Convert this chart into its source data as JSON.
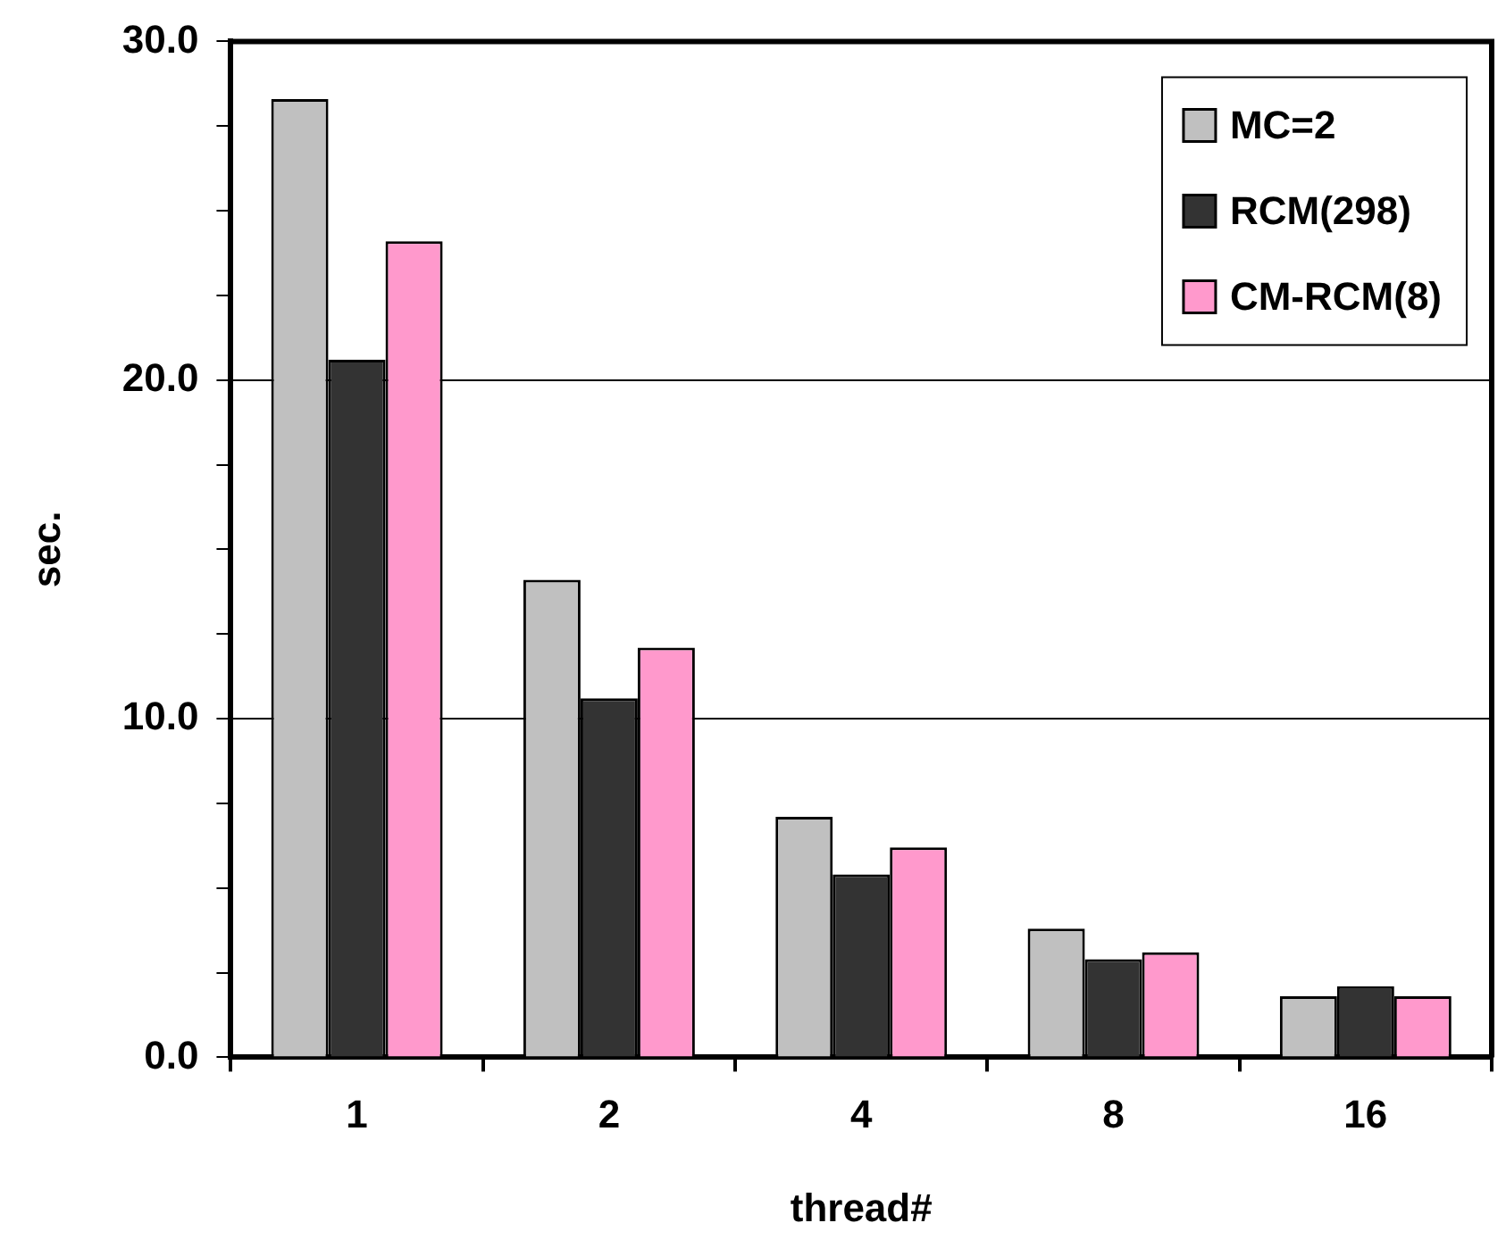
{
  "chart_data": {
    "type": "bar",
    "xlabel": "thread#",
    "ylabel": "sec.",
    "categories": [
      "1",
      "2",
      "4",
      "8",
      "16"
    ],
    "series": [
      {
        "name": "MC=2",
        "color": "#c0c0c0",
        "values": [
          28.3,
          14.1,
          7.1,
          3.8,
          1.8
        ]
      },
      {
        "name": "RCM(298)",
        "color": "#333333",
        "values": [
          20.6,
          10.6,
          5.4,
          2.9,
          2.1
        ]
      },
      {
        "name": "CM-RCM(8)",
        "color": "#ff99cc",
        "values": [
          24.1,
          12.1,
          6.2,
          3.1,
          1.8
        ]
      }
    ],
    "ylim": [
      0,
      30
    ],
    "yticks": [
      {
        "value": 0,
        "label": "0.0"
      },
      {
        "value": 2.5,
        "label": null
      },
      {
        "value": 5,
        "label": null
      },
      {
        "value": 7.5,
        "label": null
      },
      {
        "value": 10,
        "label": "10.0"
      },
      {
        "value": 12.5,
        "label": null
      },
      {
        "value": 15,
        "label": null
      },
      {
        "value": 17.5,
        "label": null
      },
      {
        "value": 20,
        "label": "20.0"
      },
      {
        "value": 22.5,
        "label": null
      },
      {
        "value": 25,
        "label": null
      },
      {
        "value": 27.5,
        "label": null
      },
      {
        "value": 30,
        "label": "30.0"
      }
    ],
    "grid": "y",
    "legend": "top right"
  }
}
